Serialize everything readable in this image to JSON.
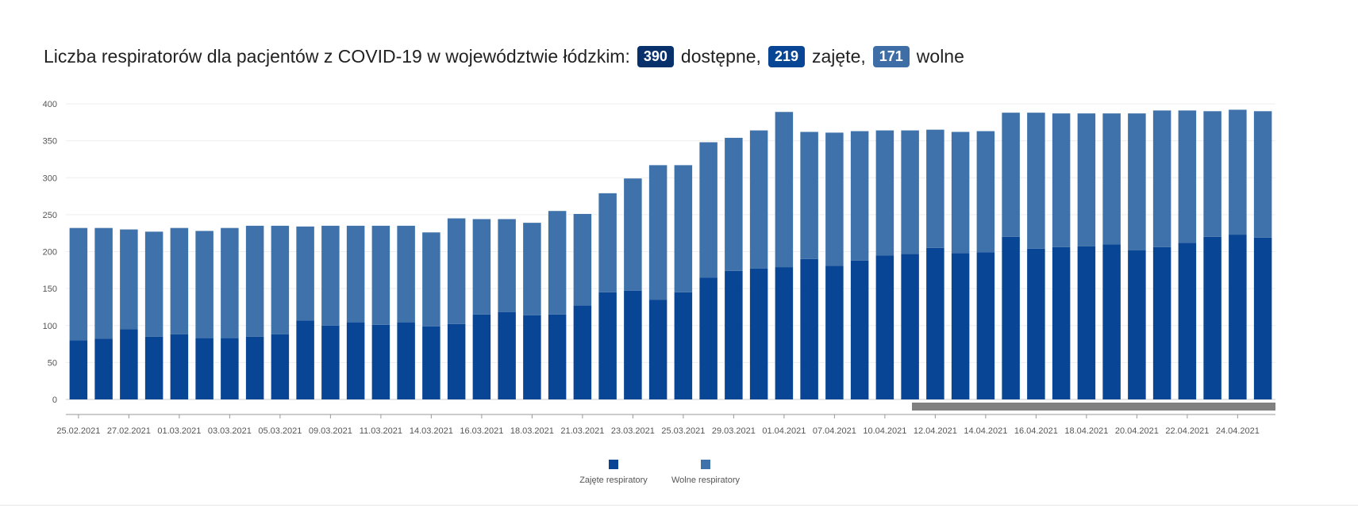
{
  "header": {
    "title_prefix": "Liczba respiratorów dla pacjentów z COVID-19 w województwie łódzkim:",
    "badges": [
      {
        "value": "390",
        "label": "dostępne,",
        "color": "#08306b"
      },
      {
        "value": "219",
        "label": "zajęte,",
        "color": "#084594"
      },
      {
        "value": "171",
        "label": "wolne",
        "color": "#3f6ea6"
      }
    ]
  },
  "chart_data": {
    "type": "bar",
    "stacked": true,
    "categories": [
      "25.02.2021",
      "26.02.2021",
      "27.02.2021",
      "28.02.2021",
      "01.03.2021",
      "02.03.2021",
      "03.03.2021",
      "04.03.2021",
      "05.03.2021",
      "08.03.2021",
      "09.03.2021",
      "10.03.2021",
      "11.03.2021",
      "12.03.2021",
      "14.03.2021",
      "15.03.2021",
      "16.03.2021",
      "17.03.2021",
      "18.03.2021",
      "19.03.2021",
      "21.03.2021",
      "22.03.2021",
      "23.03.2021",
      "24.03.2021",
      "25.03.2021",
      "26.03.2021",
      "29.03.2021",
      "30.03.2021",
      "01.04.2021",
      "06.04.2021",
      "07.04.2021",
      "08.04.2021",
      "10.04.2021",
      "11.04.2021",
      "12.04.2021",
      "13.04.2021",
      "14.04.2021",
      "15.04.2021",
      "16.04.2021",
      "17.04.2021",
      "18.04.2021",
      "19.04.2021",
      "20.04.2021",
      "21.04.2021",
      "22.04.2021",
      "23.04.2021",
      "24.04.2021",
      "25.04.2021"
    ],
    "tick_labels": [
      "25.02.2021",
      "27.02.2021",
      "01.03.2021",
      "03.03.2021",
      "05.03.2021",
      "09.03.2021",
      "11.03.2021",
      "14.03.2021",
      "16.03.2021",
      "18.03.2021",
      "21.03.2021",
      "23.03.2021",
      "25.03.2021",
      "29.03.2021",
      "01.04.2021",
      "07.04.2021",
      "10.04.2021",
      "12.04.2021",
      "14.04.2021",
      "16.04.2021",
      "18.04.2021",
      "20.04.2021",
      "22.04.2021",
      "24.04.2021"
    ],
    "series": [
      {
        "name": "Zajęte respiratory",
        "color": "#084594",
        "values": [
          80,
          82,
          95,
          85,
          88,
          83,
          83,
          85,
          88,
          107,
          100,
          104,
          101,
          104,
          99,
          102,
          115,
          118,
          114,
          115,
          127,
          145,
          147,
          135,
          145,
          165,
          174,
          177,
          179,
          190,
          181,
          188,
          195,
          197,
          205,
          198,
          199,
          220,
          204,
          206,
          207,
          210,
          202,
          206,
          212,
          220,
          223,
          219
        ]
      },
      {
        "name": "Wolne respiratory",
        "color": "#3f72aa",
        "values": [
          152,
          150,
          135,
          142,
          144,
          145,
          149,
          150,
          147,
          127,
          135,
          131,
          134,
          131,
          127,
          143,
          129,
          126,
          125,
          140,
          124,
          134,
          152,
          182,
          172,
          183,
          180,
          187,
          210,
          172,
          180,
          175,
          169,
          167,
          160,
          164,
          164,
          168,
          184,
          181,
          180,
          177,
          185,
          185,
          179,
          170,
          169,
          171
        ]
      }
    ],
    "ylim": [
      0,
      400
    ],
    "yticks": [
      0,
      50,
      100,
      150,
      200,
      250,
      300,
      350,
      400
    ],
    "legend_position": "bottom-center",
    "grid": true,
    "xlabel": "",
    "ylabel": ""
  }
}
